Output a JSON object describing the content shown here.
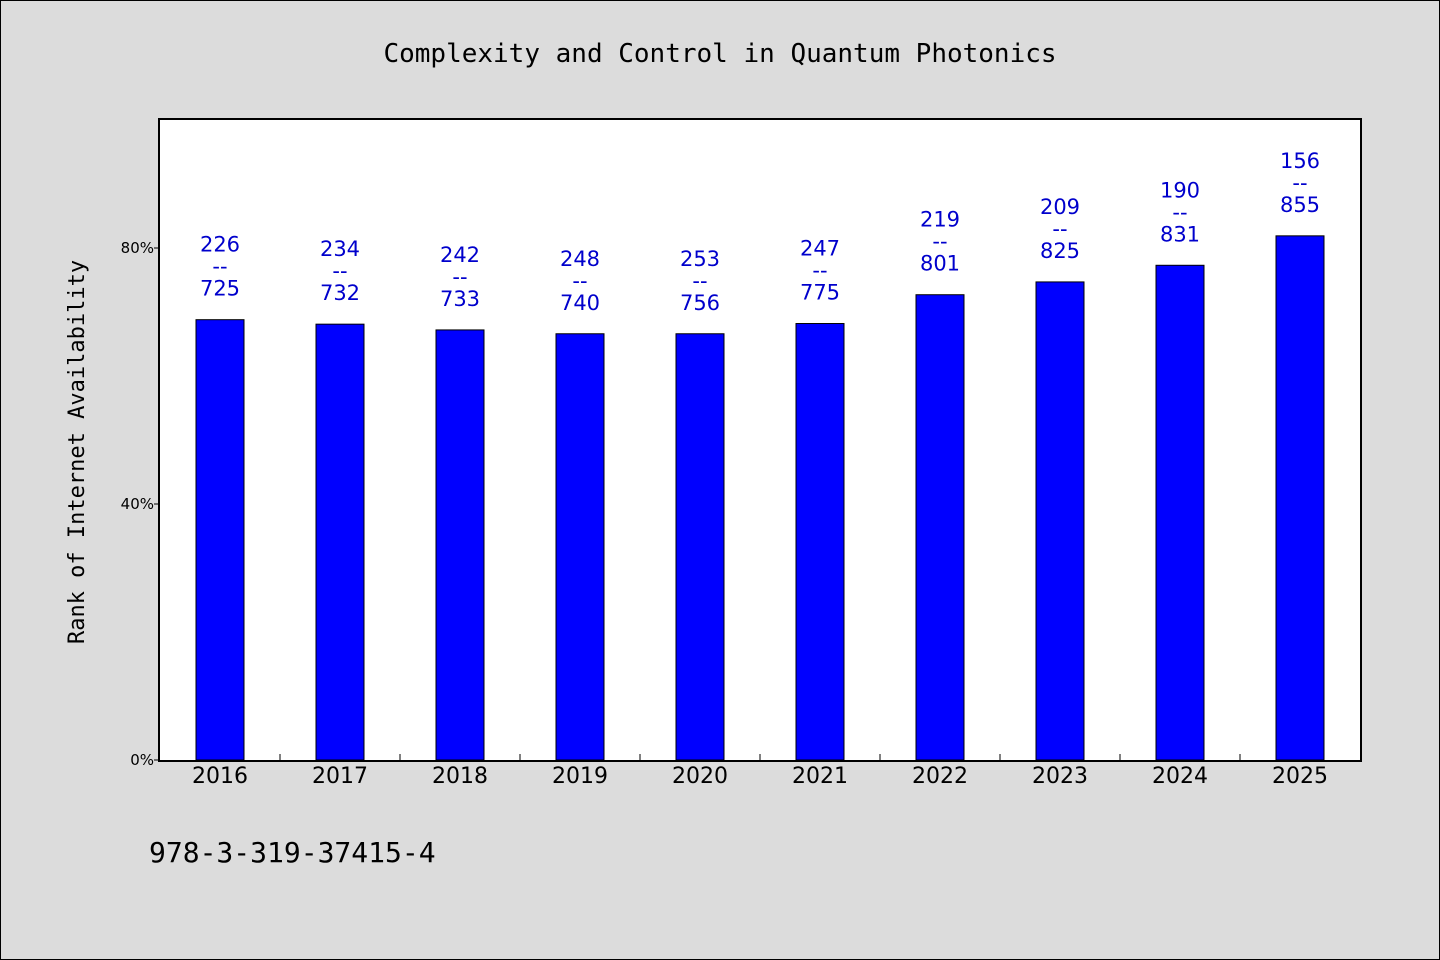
{
  "chart_data": {
    "type": "bar",
    "title": "Complexity and Control in Quantum Photonics",
    "ylabel": "Rank of Internet Availability",
    "ylim": [
      0,
      100
    ],
    "yticks": [
      {
        "value": 0,
        "label": "0%"
      },
      {
        "value": 40,
        "label": "40%"
      },
      {
        "value": 80,
        "label": "80%"
      }
    ],
    "categories": [
      "2016",
      "2017",
      "2018",
      "2019",
      "2020",
      "2021",
      "2022",
      "2023",
      "2024",
      "2025"
    ],
    "values": [
      68.8,
      68.1,
      67.2,
      66.6,
      66.6,
      68.2,
      72.7,
      74.7,
      77.3,
      81.9
    ],
    "label_top": [
      "226",
      "234",
      "242",
      "248",
      "253",
      "247",
      "219",
      "209",
      "190",
      "156"
    ],
    "label_sep": "--",
    "label_bottom": [
      "725",
      "732",
      "733",
      "740",
      "756",
      "775",
      "801",
      "825",
      "831",
      "855"
    ],
    "bar_color": "#0000ff",
    "label_color": "#0000cc",
    "grid": false,
    "legend": "none"
  },
  "footnote": "978-3-319-37415-4"
}
